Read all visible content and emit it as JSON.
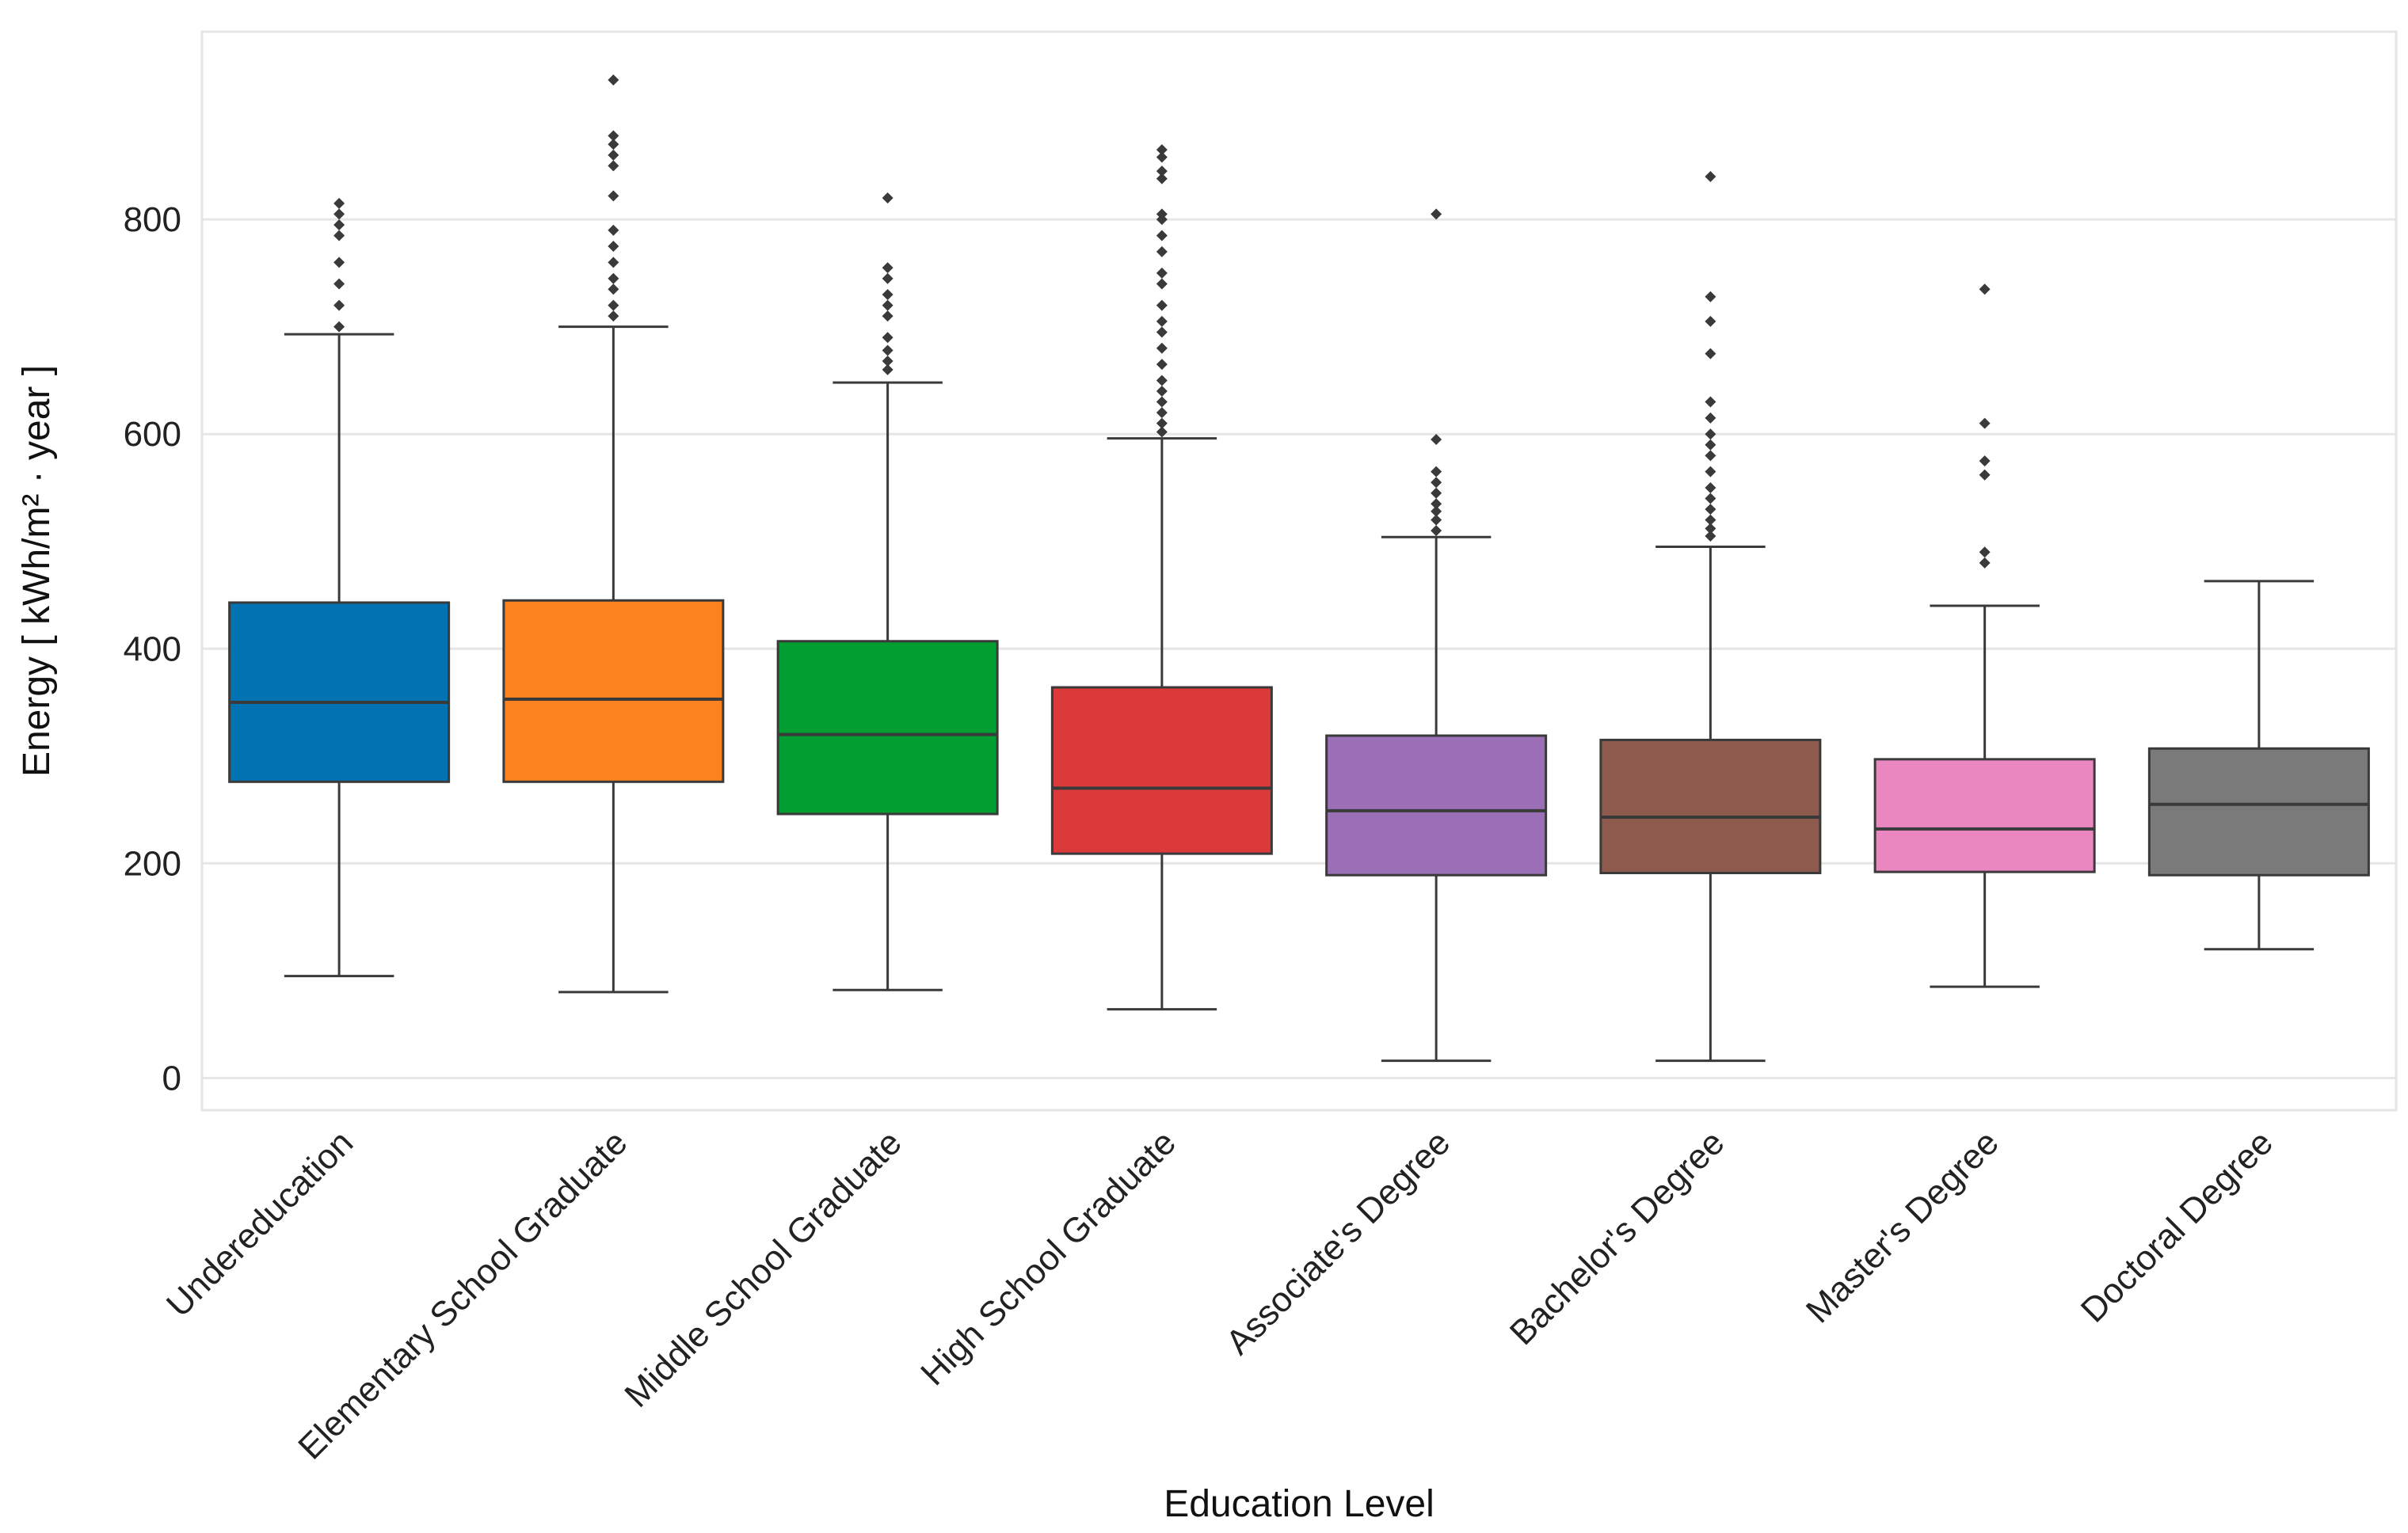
{
  "chart_data": {
    "type": "box",
    "xlabel": "Education Level",
    "ylabel": "Energy [ kWh/m² · year ]",
    "ylim": [
      -30,
      975
    ],
    "yticks": [
      0,
      200,
      400,
      600,
      800
    ],
    "grid": true,
    "categories": [
      "Undereducation",
      "Elementary School Graduate",
      "Middle School Graduate",
      "High School Graduate",
      "Associate's Degree",
      "Bachelor's Degree",
      "Master's Degree",
      "Doctoral Degree"
    ],
    "colors": [
      "#0173b2",
      "#fb821f",
      "#029e32",
      "#dc3a3a",
      "#9b6fb6",
      "#8f5a4e",
      "#ea86c0",
      "#7a7a7a"
    ],
    "boxes": [
      {
        "category": "Undereducation",
        "whislo": 95,
        "q1": 276,
        "med": 350,
        "q3": 443,
        "whishi": 693,
        "fliers": [
          700,
          720,
          740,
          760,
          785,
          795,
          805,
          815
        ]
      },
      {
        "category": "Elementary School Graduate",
        "whislo": 80,
        "q1": 276,
        "med": 353,
        "q3": 445,
        "whishi": 700,
        "fliers": [
          710,
          720,
          735,
          745,
          760,
          775,
          790,
          822,
          850,
          860,
          870,
          878,
          930
        ]
      },
      {
        "category": "Middle School Graduate",
        "whislo": 82,
        "q1": 246,
        "med": 320,
        "q3": 407,
        "whishi": 648,
        "fliers": [
          660,
          668,
          678,
          690,
          710,
          720,
          730,
          745,
          755,
          820
        ]
      },
      {
        "category": "High School Graduate",
        "whislo": 64,
        "q1": 209,
        "med": 270,
        "q3": 364,
        "whishi": 596,
        "fliers": [
          602,
          610,
          620,
          630,
          640,
          650,
          665,
          680,
          695,
          705,
          720,
          740,
          750,
          770,
          785,
          800,
          805,
          838,
          845,
          858,
          865
        ]
      },
      {
        "category": "Associate's Degree",
        "whislo": 16,
        "q1": 189,
        "med": 249,
        "q3": 319,
        "whishi": 504,
        "fliers": [
          510,
          520,
          528,
          535,
          545,
          555,
          565,
          595,
          805
        ]
      },
      {
        "category": "Bachelor's Degree",
        "whislo": 16,
        "q1": 191,
        "med": 243,
        "q3": 315,
        "whishi": 495,
        "fliers": [
          505,
          512,
          520,
          530,
          540,
          550,
          565,
          580,
          590,
          600,
          615,
          630,
          675,
          705,
          728,
          840
        ]
      },
      {
        "category": "Master's Degree",
        "whislo": 85,
        "q1": 192,
        "med": 232,
        "q3": 297,
        "whishi": 440,
        "fliers": [
          480,
          490,
          562,
          575,
          610,
          735
        ]
      },
      {
        "category": "Doctoral Degree",
        "whislo": 120,
        "q1": 189,
        "med": 255,
        "q3": 307,
        "whishi": 463,
        "fliers": []
      }
    ]
  }
}
